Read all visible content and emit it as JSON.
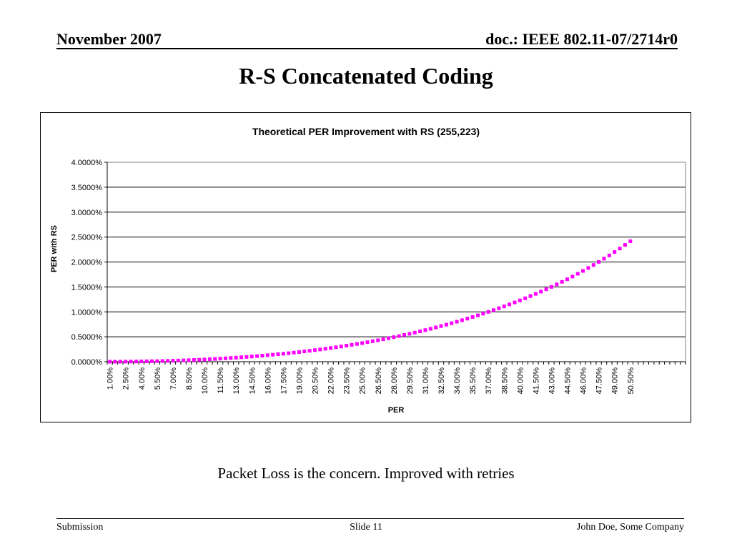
{
  "header": {
    "date": "November 2007",
    "doc_id": "doc.: IEEE 802.11-07/2714r0"
  },
  "slide": {
    "title": "R-S Concatenated Coding",
    "caption": "Packet Loss is the concern. Improved with retries"
  },
  "footer": {
    "left": "Submission",
    "center": "Slide 11",
    "right": "John Doe, Some Company"
  },
  "colors": {
    "series": "#FF00FF",
    "gridline": "#000000",
    "plot_border": "#808080"
  },
  "chart_data": {
    "type": "line",
    "title": "Theoretical PER Improvement with RS (255,223)",
    "xlabel": "PER",
    "ylabel": "PER with RS",
    "x_range_percent": [
      1.0,
      50.5
    ],
    "x_step_percent": 0.5,
    "x_tick_labels": [
      "1.00%",
      "2.50%",
      "4.00%",
      "5.50%",
      "7.00%",
      "8.50%",
      "10.00%",
      "11.50%",
      "13.00%",
      "14.50%",
      "16.00%",
      "17.50%",
      "19.00%",
      "20.50%",
      "22.00%",
      "23.50%",
      "25.00%",
      "26.50%",
      "28.00%",
      "29.50%",
      "31.00%",
      "32.50%",
      "34.00%",
      "35.50%",
      "37.00%",
      "38.50%",
      "40.00%",
      "41.50%",
      "43.00%",
      "44.50%",
      "46.00%",
      "47.50%",
      "49.00%",
      "50.50%"
    ],
    "y_tick_labels": [
      "0.0000%",
      "0.5000%",
      "1.0000%",
      "1.5000%",
      "2.0000%",
      "2.5000%",
      "3.0000%",
      "3.5000%",
      "4.0000%"
    ],
    "ylim_percent": [
      0,
      4
    ],
    "grid": true,
    "legend": "none",
    "series": [
      {
        "marker": "square",
        "x": [
          1.0,
          1.5,
          2.0,
          2.5,
          3.0,
          3.5,
          4.0,
          4.5,
          5.0,
          5.5,
          6.0,
          6.5,
          7.0,
          7.5,
          8.0,
          8.5,
          9.0,
          9.5,
          10.0,
          10.5,
          11.0,
          11.5,
          12.0,
          12.5,
          13.0,
          13.5,
          14.0,
          14.5,
          15.0,
          15.5,
          16.0,
          16.5,
          17.0,
          17.5,
          18.0,
          18.5,
          19.0,
          19.5,
          20.0,
          20.5,
          21.0,
          21.5,
          22.0,
          22.5,
          23.0,
          23.5,
          24.0,
          24.5,
          25.0,
          25.5,
          26.0,
          26.5,
          27.0,
          27.5,
          28.0,
          28.5,
          29.0,
          29.5,
          30.0,
          30.5,
          31.0,
          31.5,
          32.0,
          32.5,
          33.0,
          33.5,
          34.0,
          34.5,
          35.0,
          35.5,
          36.0,
          36.5,
          37.0,
          37.5,
          38.0,
          38.5,
          39.0,
          39.5,
          40.0,
          40.5,
          41.0,
          41.5,
          42.0,
          42.5,
          43.0,
          43.5,
          44.0,
          44.5,
          45.0,
          45.5,
          46.0,
          46.5,
          47.0,
          47.5,
          48.0,
          48.5,
          49.0,
          49.5,
          50.0,
          50.5
        ],
        "y": [
          0.0,
          0.0,
          0.001,
          0.002,
          0.003,
          0.004,
          0.006,
          0.008,
          0.01,
          0.012,
          0.014,
          0.017,
          0.02,
          0.024,
          0.027,
          0.031,
          0.036,
          0.04,
          0.045,
          0.05,
          0.056,
          0.062,
          0.068,
          0.075,
          0.081,
          0.089,
          0.096,
          0.104,
          0.113,
          0.121,
          0.131,
          0.14,
          0.15,
          0.16,
          0.171,
          0.183,
          0.194,
          0.207,
          0.219,
          0.233,
          0.246,
          0.26,
          0.275,
          0.29,
          0.305,
          0.322,
          0.338,
          0.356,
          0.373,
          0.392,
          0.411,
          0.43,
          0.45,
          0.471,
          0.492,
          0.514,
          0.537,
          0.56,
          0.584,
          0.609,
          0.634,
          0.66,
          0.687,
          0.715,
          0.743,
          0.772,
          0.802,
          0.833,
          0.864,
          0.897,
          0.93,
          0.964,
          0.999,
          1.035,
          1.072,
          1.11,
          1.149,
          1.189,
          1.23,
          1.272,
          1.316,
          1.36,
          1.406,
          1.453,
          1.501,
          1.551,
          1.602,
          1.654,
          1.708,
          1.764,
          1.821,
          1.88,
          1.94,
          2.002,
          2.067,
          2.132,
          2.2,
          2.27,
          2.342,
          2.417
        ]
      }
    ]
  }
}
